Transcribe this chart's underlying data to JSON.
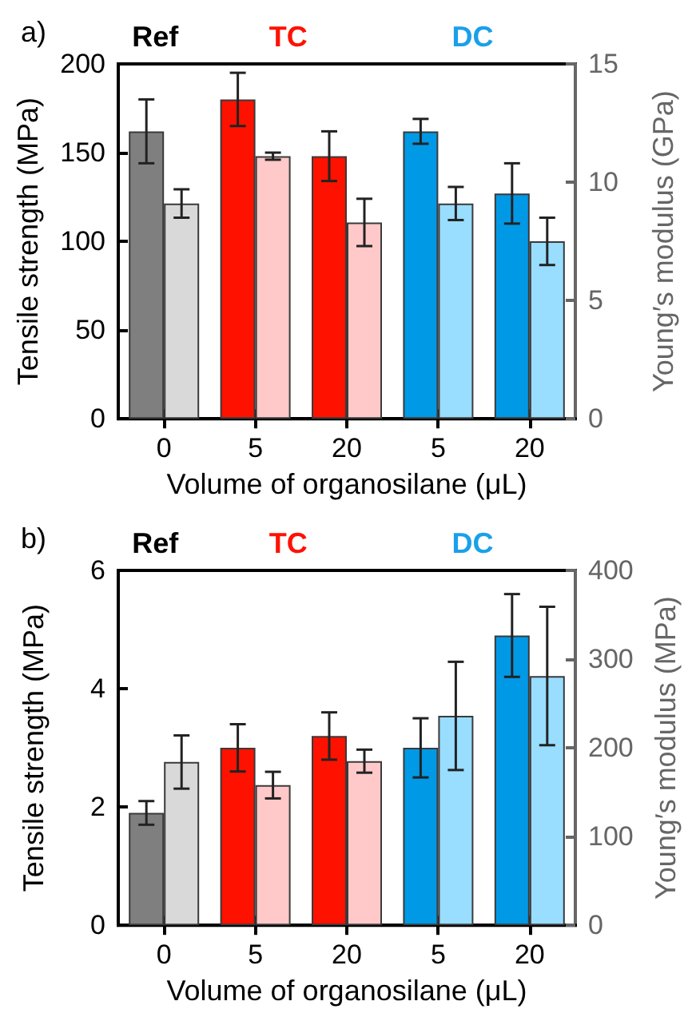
{
  "chart_data": [
    {
      "type": "bar",
      "title": "a)",
      "categories": [
        "0",
        "5",
        "20",
        "5",
        "20"
      ],
      "xlabel": "Volume of organosilane (μL)",
      "ylabel": "Tensile strength (MPa)",
      "y2label": "Young′s modulus (GPa)",
      "annotations": [
        "Ref",
        "TC",
        "DC"
      ],
      "series": [
        {
          "colors": [
            "#7f7f7f",
            "#ff1100",
            "#ff1100",
            "#0099e6",
            "#0099e6"
          ],
          "values": [
            162,
            180,
            148,
            162,
            127
          ],
          "errors": [
            18,
            15,
            14,
            7,
            17
          ]
        },
        {
          "axis": "y2",
          "colors": [
            "#d9d9d9",
            "#ffc9c9",
            "#ffc9c9",
            "#99ddff",
            "#99ddff"
          ],
          "values": [
            9.1,
            11.1,
            8.3,
            9.1,
            7.5
          ],
          "errors": [
            0.6,
            0.15,
            1.0,
            0.7,
            1.0
          ]
        }
      ],
      "ylim": [
        0,
        200
      ],
      "yticks": [
        0,
        50,
        100,
        150,
        200
      ],
      "y2lim": [
        0,
        15
      ],
      "y2ticks": [
        0,
        5,
        10,
        15
      ],
      "grid": false
    },
    {
      "type": "bar",
      "title": "b)",
      "categories": [
        "0",
        "5",
        "20",
        "5",
        "20"
      ],
      "xlabel": "Volume of organosilane (μL)",
      "ylabel": "Tensile strength (MPa)",
      "y2label": "Young′s modulus (MPa)",
      "annotations": [
        "Ref",
        "TC",
        "DC"
      ],
      "series": [
        {
          "colors": [
            "#7f7f7f",
            "#ff1100",
            "#ff1100",
            "#0099e6",
            "#0099e6"
          ],
          "values": [
            1.9,
            3.0,
            3.2,
            3.0,
            4.9
          ],
          "errors": [
            0.2,
            0.4,
            0.4,
            0.5,
            0.7
          ]
        },
        {
          "axis": "y2",
          "colors": [
            "#d9d9d9",
            "#ffc9c9",
            "#ffc9c9",
            "#99ddff",
            "#99ddff"
          ],
          "values": [
            184,
            158,
            185,
            236,
            281
          ],
          "errors": [
            30,
            15,
            13,
            61,
            78
          ]
        }
      ],
      "ylim": [
        0,
        6
      ],
      "yticks": [
        0,
        2,
        4,
        6
      ],
      "y2lim": [
        0,
        400
      ],
      "y2ticks": [
        0,
        100,
        200,
        300,
        400
      ],
      "grid": false
    }
  ]
}
